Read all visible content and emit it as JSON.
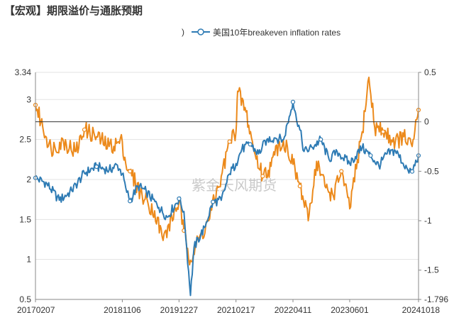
{
  "title": "【宏观】期限溢价与通胀预期",
  "legend": {
    "hidden_series_fragment": ")",
    "visible_series_name": "美国10年breakeven inflation rates"
  },
  "watermark": "紫金天风期货",
  "colors": {
    "breakeven": "#2e7bb4",
    "term_premium": "#ec8a1c",
    "grid": "#e3e3e3",
    "axis": "#888888",
    "zero_line": "#333333"
  },
  "chart_data": {
    "type": "line",
    "x_ticks": [
      "20170207",
      "20181106",
      "20191227",
      "20210217",
      "20220411",
      "20230601",
      "20241018"
    ],
    "left_axis": {
      "min": 0.5,
      "max": 3.34,
      "ticks": [
        "3.34",
        "3",
        "2.5",
        "2",
        "1.5",
        "1",
        "0.5"
      ]
    },
    "right_axis": {
      "min": -1.796,
      "max": 0.5,
      "ticks": [
        "0.5",
        "0",
        "-0.5",
        "-1",
        "-1.5",
        "-1.796"
      ]
    },
    "series": [
      {
        "name": "美国10年breakeven inflation rates",
        "axis": "left",
        "points": [
          [
            "20170207",
            2.02
          ],
          [
            "20170501",
            1.95
          ],
          [
            "20170801",
            1.74
          ],
          [
            "20171101",
            1.86
          ],
          [
            "20180201",
            2.08
          ],
          [
            "20180501",
            2.16
          ],
          [
            "20180801",
            2.12
          ],
          [
            "20181001",
            2.18
          ],
          [
            "20181106",
            2.07
          ],
          [
            "20181201",
            1.9
          ],
          [
            "20190101",
            1.73
          ],
          [
            "20190301",
            1.92
          ],
          [
            "20190501",
            1.85
          ],
          [
            "20190801",
            1.65
          ],
          [
            "20191001",
            1.53
          ],
          [
            "20191227",
            1.76
          ],
          [
            "20200201",
            1.6
          ],
          [
            "20200320",
            0.55
          ],
          [
            "20200415",
            1.15
          ],
          [
            "20200701",
            1.4
          ],
          [
            "20200901",
            1.72
          ],
          [
            "20201101",
            1.74
          ],
          [
            "20210101",
            2.07
          ],
          [
            "20210217",
            2.2
          ],
          [
            "20210401",
            2.38
          ],
          [
            "20210601",
            2.44
          ],
          [
            "20210801",
            2.32
          ],
          [
            "20211001",
            2.5
          ],
          [
            "20211201",
            2.52
          ],
          [
            "20220201",
            2.5
          ],
          [
            "20220411",
            2.97
          ],
          [
            "20220501",
            2.82
          ],
          [
            "20220601",
            2.62
          ],
          [
            "20220701",
            2.35
          ],
          [
            "20220901",
            2.4
          ],
          [
            "20221101",
            2.5
          ],
          [
            "20230101",
            2.25
          ],
          [
            "20230301",
            2.35
          ],
          [
            "20230601",
            2.2
          ],
          [
            "20230901",
            2.4
          ],
          [
            "20231101",
            2.3
          ],
          [
            "20240101",
            2.17
          ],
          [
            "20240301",
            2.32
          ],
          [
            "20240501",
            2.36
          ],
          [
            "20240801",
            2.12
          ],
          [
            "20240901",
            2.1
          ],
          [
            "20241018",
            2.3
          ]
        ]
      },
      {
        "name": "",
        "axis": "right",
        "points": [
          [
            "20170207",
            0.17
          ],
          [
            "20170401",
            -0.05
          ],
          [
            "20170601",
            -0.27
          ],
          [
            "20170901",
            -0.2
          ],
          [
            "20171201",
            -0.3
          ],
          [
            "20180201",
            -0.08
          ],
          [
            "20180501",
            -0.15
          ],
          [
            "20180801",
            -0.25
          ],
          [
            "20181106",
            -0.2
          ],
          [
            "20181201",
            -0.42
          ],
          [
            "20190101",
            -0.5
          ],
          [
            "20190401",
            -0.75
          ],
          [
            "20190701",
            -0.9
          ],
          [
            "20190901",
            -1.2
          ],
          [
            "20191227",
            -0.8
          ],
          [
            "20200201",
            -1.1
          ],
          [
            "20200320",
            -1.4
          ],
          [
            "20200501",
            -1.25
          ],
          [
            "20200801",
            -1.0
          ],
          [
            "20201101",
            -0.55
          ],
          [
            "20210101",
            -0.2
          ],
          [
            "20210217",
            -0.1
          ],
          [
            "20210301",
            0.31
          ],
          [
            "20210501",
            0.1
          ],
          [
            "20210701",
            -0.3
          ],
          [
            "20210901",
            -0.55
          ],
          [
            "20211101",
            -0.45
          ],
          [
            "20220101",
            -0.2
          ],
          [
            "20220301",
            -0.25
          ],
          [
            "20220411",
            -0.43
          ],
          [
            "20220601",
            -0.65
          ],
          [
            "20220801",
            -1.0
          ],
          [
            "20221001",
            -0.4
          ],
          [
            "20221201",
            -0.65
          ],
          [
            "20230201",
            -0.75
          ],
          [
            "20230401",
            -0.5
          ],
          [
            "20230601",
            -0.88
          ],
          [
            "20230901",
            -0.1
          ],
          [
            "20231020",
            0.45
          ],
          [
            "20231201",
            -0.05
          ],
          [
            "20240201",
            -0.1
          ],
          [
            "20240501",
            -0.2
          ],
          [
            "20240701",
            -0.15
          ],
          [
            "20240901",
            -0.25
          ],
          [
            "20241018",
            0.12
          ]
        ]
      }
    ]
  }
}
